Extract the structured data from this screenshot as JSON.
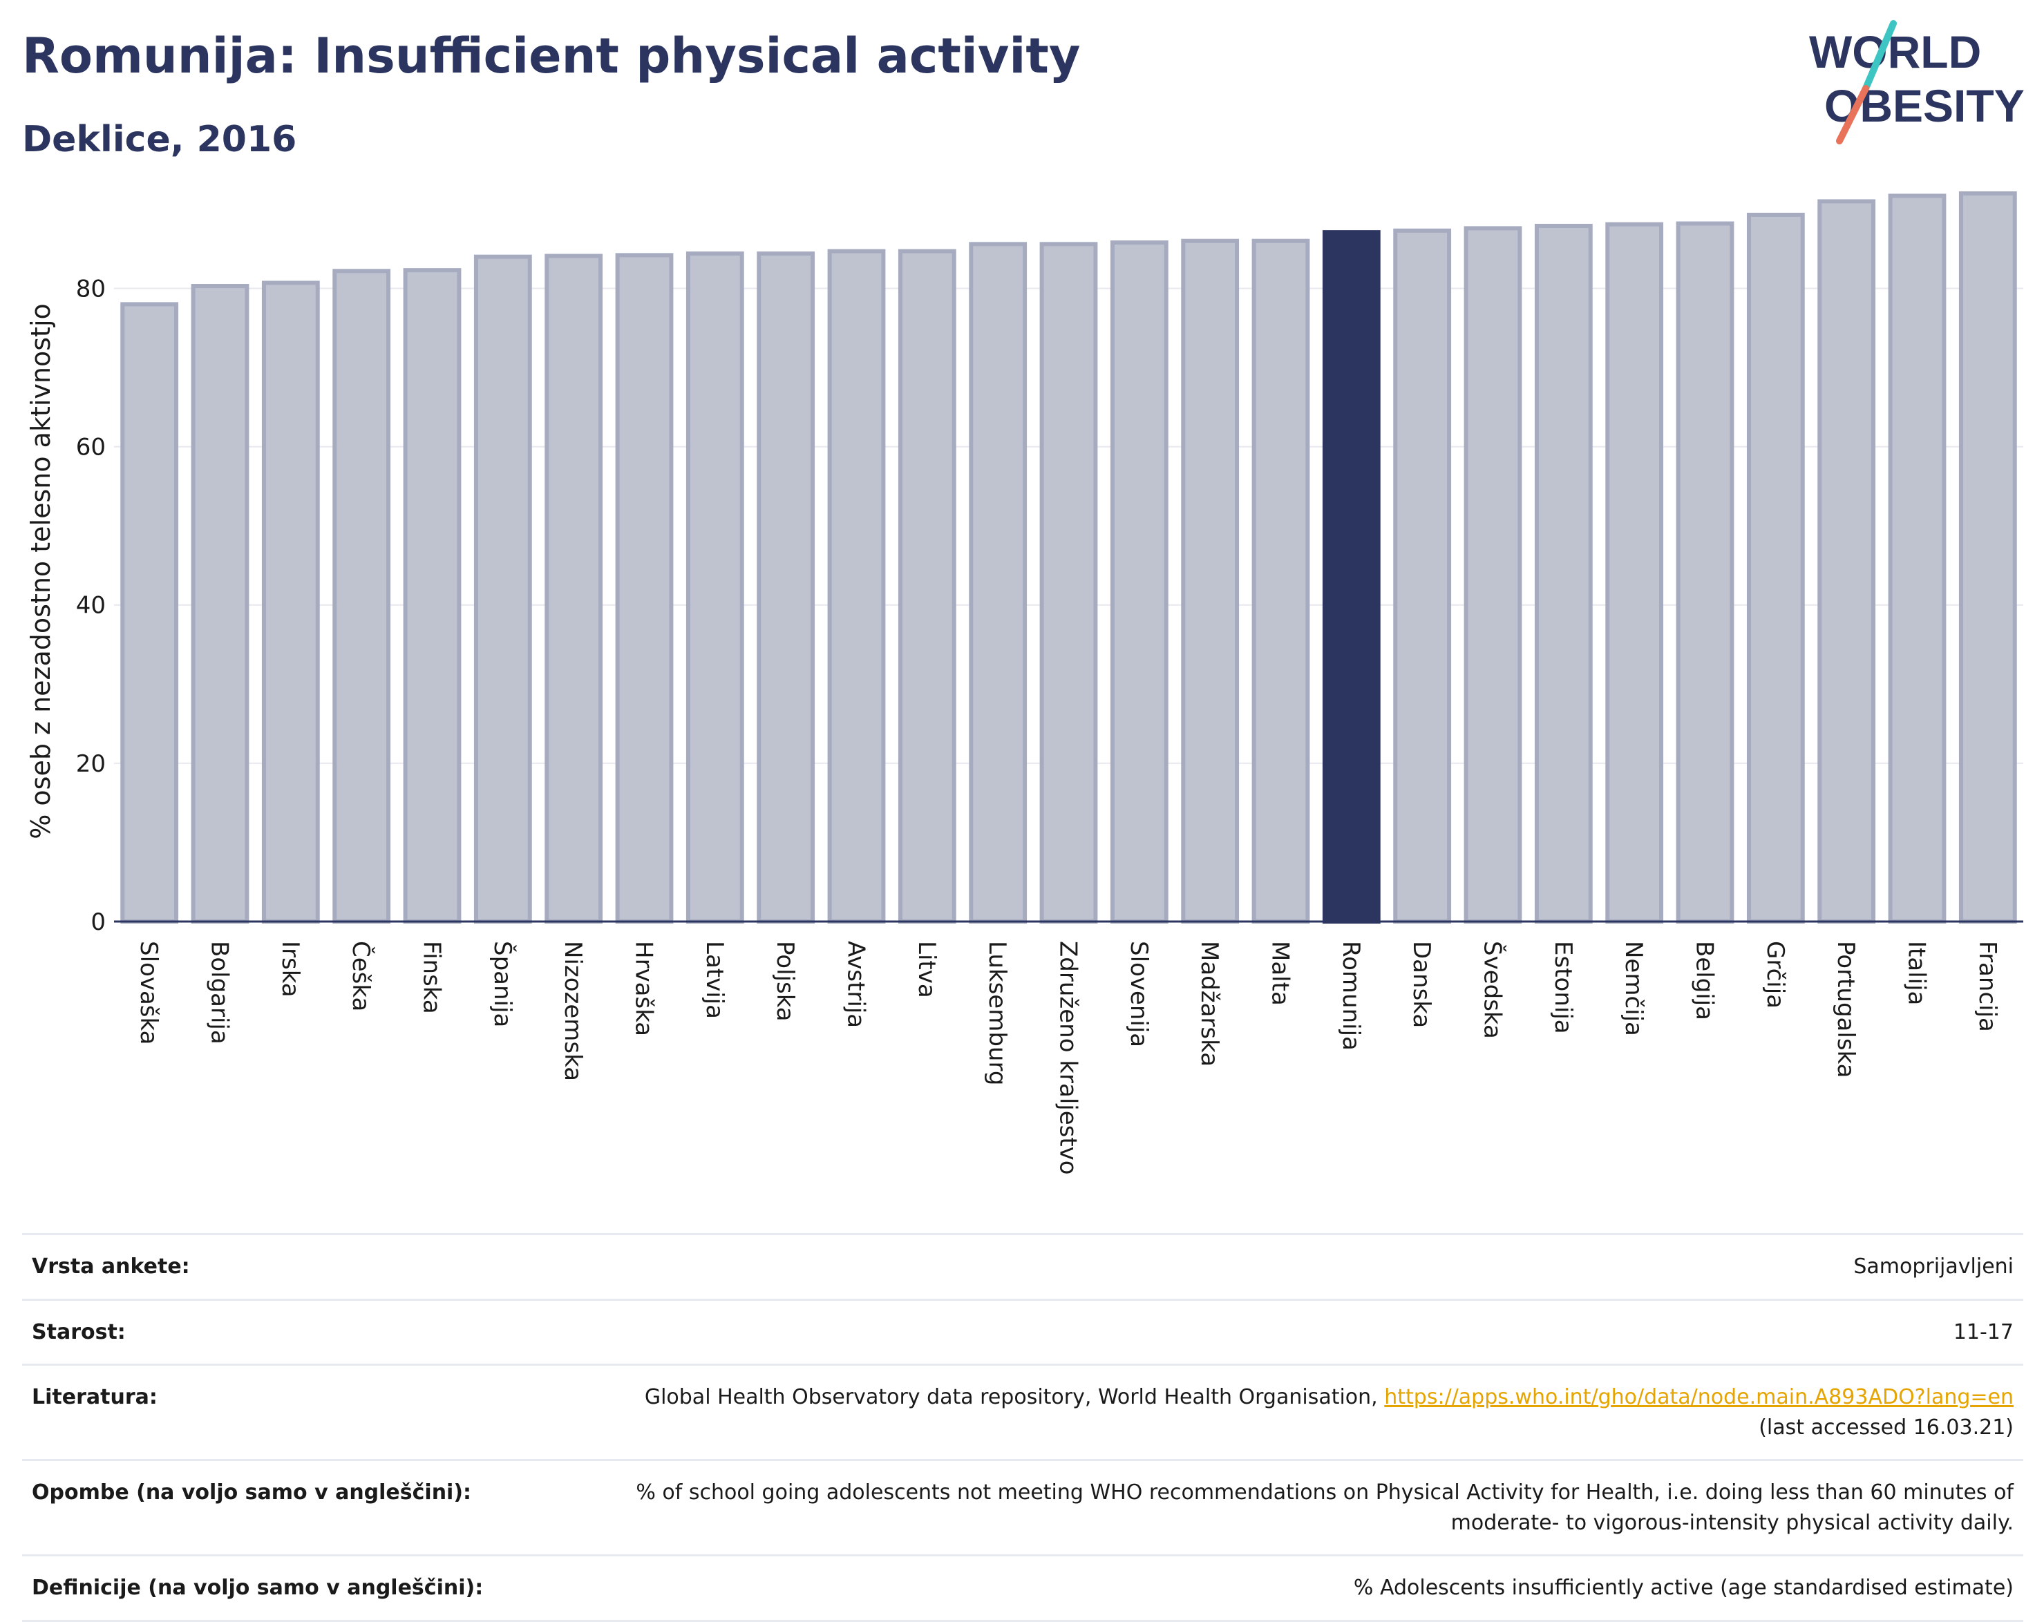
{
  "header": {
    "title": "Romunija: Insufficient physical activity",
    "subtitle": "Deklice, 2016"
  },
  "logo": {
    "line1": "WORLD",
    "line2": "OBESITY",
    "text_color": "#2b3560",
    "slash_colors": [
      "#3cc5c3",
      "#e8735a"
    ]
  },
  "chart_data": {
    "type": "bar",
    "ylabel": "% oseb z nezadostno telesno aktivnostjo",
    "ylim": [
      0,
      92
    ],
    "yticks": [
      0,
      20,
      40,
      60,
      80
    ],
    "grid": true,
    "highlight": "Romunija",
    "colors": {
      "default_fill": "#bfc3d0",
      "default_stroke": "#a6abc0",
      "highlight_fill": "#2b3560"
    },
    "categories": [
      "Slovaška",
      "Bolgarija",
      "Irska",
      "Češka",
      "Finska",
      "Španija",
      "Nizozemska",
      "Hrvaška",
      "Latvija",
      "Poljska",
      "Avstrija",
      "Litva",
      "Luksemburg",
      "Združeno kraljestvo",
      "Slovenija",
      "Madžarska",
      "Malta",
      "Romunija",
      "Danska",
      "Švedska",
      "Estonija",
      "Nemčija",
      "Belgija",
      "Grčija",
      "Portugalska",
      "Italija",
      "Francija"
    ],
    "values": [
      78.0,
      80.3,
      80.7,
      82.2,
      82.3,
      84.0,
      84.1,
      84.2,
      84.4,
      84.4,
      84.7,
      84.7,
      85.6,
      85.6,
      85.8,
      86.0,
      86.0,
      87.1,
      87.3,
      87.6,
      87.9,
      88.1,
      88.2,
      89.3,
      91.0,
      91.7,
      92.0
    ]
  },
  "info": {
    "rows": [
      {
        "key": "Vrsta ankete:",
        "value": "Samoprijavljeni"
      },
      {
        "key": "Starost:",
        "value": "11-17"
      },
      {
        "key": "Literatura:",
        "value": "Global Health Observatory data repository, World Health Organisation,",
        "link": "https://apps.who.int/gho/data/node.main.A893ADO?lang=en",
        "after": "(last accessed 16.03.21)"
      },
      {
        "key": "Opombe (na voljo samo v angleščini):",
        "value": "% of school going adolescents not meeting WHO recommendations on Physical Activity for Health, i.e. doing less than 60 minutes of moderate- to vigorous-intensity physical activity daily."
      },
      {
        "key": "Definicije (na voljo samo v angleščini):",
        "value": "% Adolescents insufficiently active (age standardised estimate)"
      }
    ]
  }
}
